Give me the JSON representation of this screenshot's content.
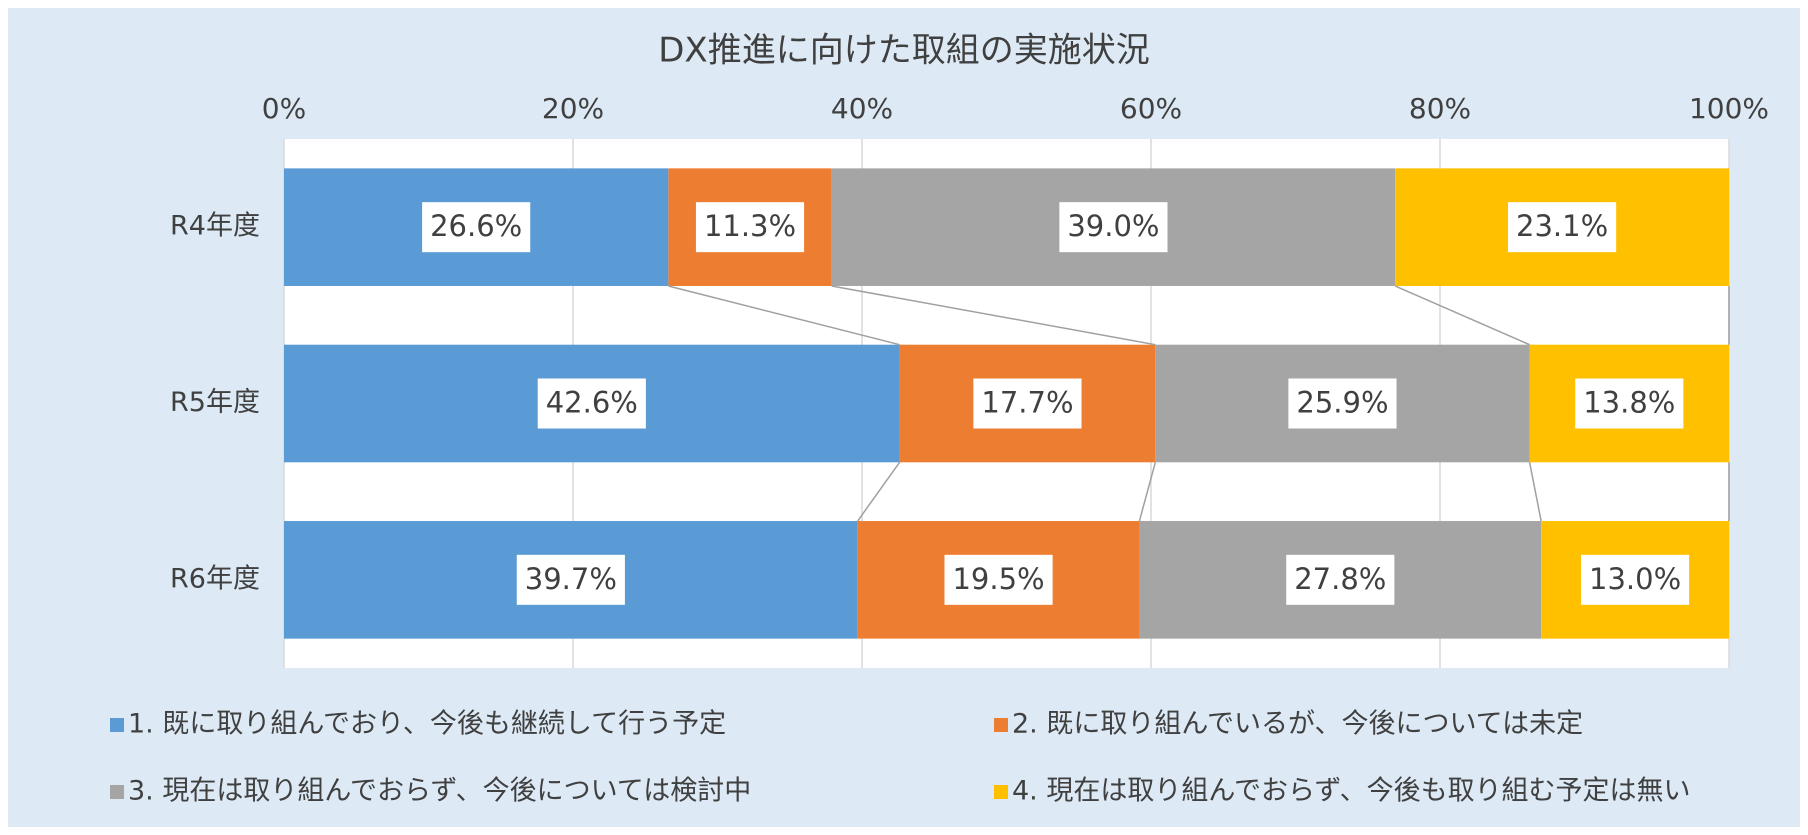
{
  "chart_data": {
    "type": "bar",
    "orientation": "horizontal",
    "stacked": true,
    "title": "DX推進に向けた取組の実施状況",
    "categories": [
      "R4年度",
      "R5年度",
      "R6年度"
    ],
    "series": [
      {
        "name": "1. 既に取り組んでおり、今後も継続して行う予定",
        "color": "#5b9bd5",
        "values": [
          26.6,
          42.6,
          39.7
        ],
        "value_labels": [
          "26.6%",
          "42.6%",
          "39.7%"
        ]
      },
      {
        "name": "2. 既に取り組んでいるが、今後については未定",
        "color": "#ed7d31",
        "values": [
          11.3,
          17.7,
          19.5
        ],
        "value_labels": [
          "11.3%",
          "17.7%",
          "19.5%"
        ]
      },
      {
        "name": "3. 現在は取り組んでおらず、今後については検討中",
        "color": "#a5a5a5",
        "values": [
          39,
          25.9,
          27.8
        ],
        "value_labels": [
          "39.0%",
          "25.9%",
          "27.8%"
        ]
      },
      {
        "name": "4. 現在は取り組んでおらず、今後も取り組む予定は無い",
        "color": "#ffc000",
        "values": [
          23.1,
          13.8,
          13
        ],
        "value_labels": [
          "23.1%",
          "13.8%",
          "13.0%"
        ]
      }
    ],
    "xlim": [
      0,
      100
    ],
    "xticks": [
      {
        "value": 0,
        "label": "0%"
      },
      {
        "value": 20,
        "label": "20%"
      },
      {
        "value": 40,
        "label": "40%"
      },
      {
        "value": 60,
        "label": "60%"
      },
      {
        "value": 80,
        "label": "80%"
      },
      {
        "value": 100,
        "label": "100%"
      }
    ],
    "grid": true,
    "legend": "bottom",
    "series_lines": true
  }
}
